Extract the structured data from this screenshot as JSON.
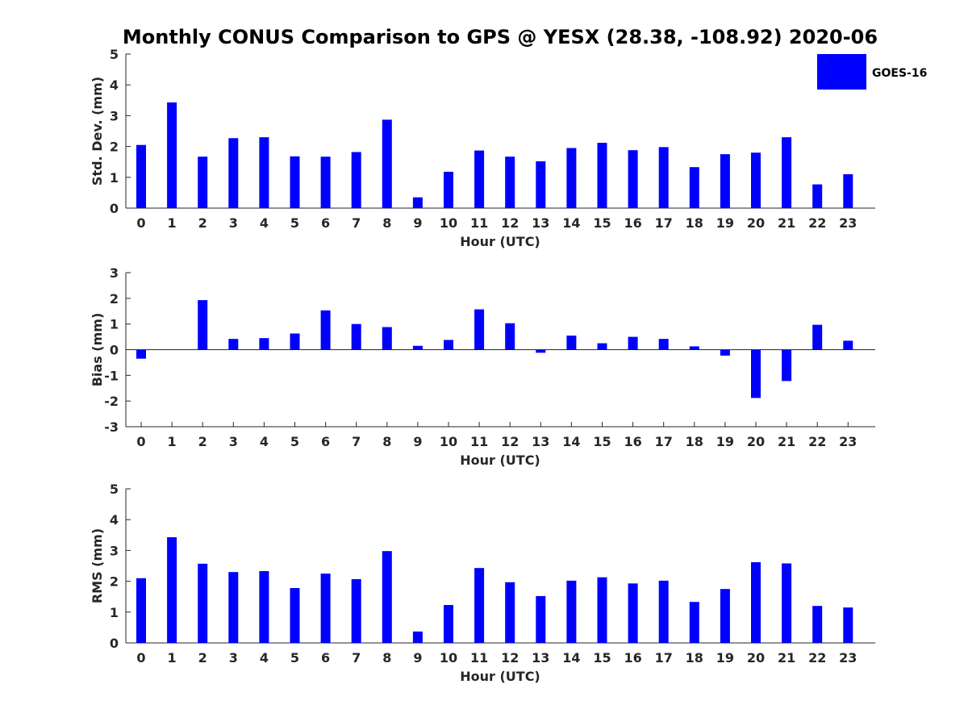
{
  "title": "Monthly CONUS Comparison to GPS @ YESX (28.38, -108.92) 2020-06",
  "colors": {
    "bar": "#0000ff",
    "axis": "#262626"
  },
  "legend": {
    "label": "GOES-16",
    "placement": "top-right"
  },
  "chart_data": [
    {
      "type": "bar",
      "xlabel": "Hour (UTC)",
      "ylabel": "Std. Dev. (mm)",
      "ylim": [
        0,
        5
      ],
      "yticks": [
        0,
        1,
        2,
        3,
        4,
        5
      ],
      "categories": [
        "0",
        "1",
        "2",
        "3",
        "4",
        "5",
        "6",
        "7",
        "8",
        "9",
        "10",
        "11",
        "12",
        "13",
        "14",
        "15",
        "16",
        "17",
        "18",
        "19",
        "20",
        "21",
        "22",
        "23"
      ],
      "series": [
        {
          "name": "GOES-16",
          "values": [
            2.05,
            3.43,
            1.67,
            2.27,
            2.3,
            1.68,
            1.67,
            1.82,
            2.87,
            0.35,
            1.18,
            1.87,
            1.67,
            1.52,
            1.95,
            2.12,
            1.88,
            1.98,
            1.33,
            1.75,
            1.8,
            2.3,
            0.77,
            1.1
          ]
        }
      ]
    },
    {
      "type": "bar",
      "xlabel": "Hour (UTC)",
      "ylabel": "Bias (mm)",
      "ylim": [
        -3,
        3
      ],
      "yticks": [
        -3,
        -2,
        -1,
        0,
        1,
        2,
        3
      ],
      "categories": [
        "0",
        "1",
        "2",
        "3",
        "4",
        "5",
        "6",
        "7",
        "8",
        "9",
        "10",
        "11",
        "12",
        "13",
        "14",
        "15",
        "16",
        "17",
        "18",
        "19",
        "20",
        "21",
        "22",
        "23"
      ],
      "series": [
        {
          "name": "GOES-16",
          "values": [
            -0.35,
            0.0,
            1.93,
            0.42,
            0.45,
            0.63,
            1.53,
            1.0,
            0.88,
            0.15,
            0.38,
            1.57,
            1.03,
            -0.12,
            0.55,
            0.25,
            0.5,
            0.42,
            0.13,
            -0.23,
            -1.88,
            -1.22,
            0.97,
            0.35
          ]
        }
      ]
    },
    {
      "type": "bar",
      "xlabel": "Hour (UTC)",
      "ylabel": "RMS (mm)",
      "ylim": [
        0,
        5
      ],
      "yticks": [
        0,
        1,
        2,
        3,
        4,
        5
      ],
      "categories": [
        "0",
        "1",
        "2",
        "3",
        "4",
        "5",
        "6",
        "7",
        "8",
        "9",
        "10",
        "11",
        "12",
        "13",
        "14",
        "15",
        "16",
        "17",
        "18",
        "19",
        "20",
        "21",
        "22",
        "23"
      ],
      "series": [
        {
          "name": "GOES-16",
          "values": [
            2.1,
            3.43,
            2.57,
            2.3,
            2.33,
            1.78,
            2.25,
            2.07,
            2.98,
            0.37,
            1.23,
            2.43,
            1.97,
            1.52,
            2.02,
            2.13,
            1.93,
            2.02,
            1.33,
            1.75,
            2.62,
            2.58,
            1.2,
            1.15
          ]
        }
      ]
    }
  ]
}
